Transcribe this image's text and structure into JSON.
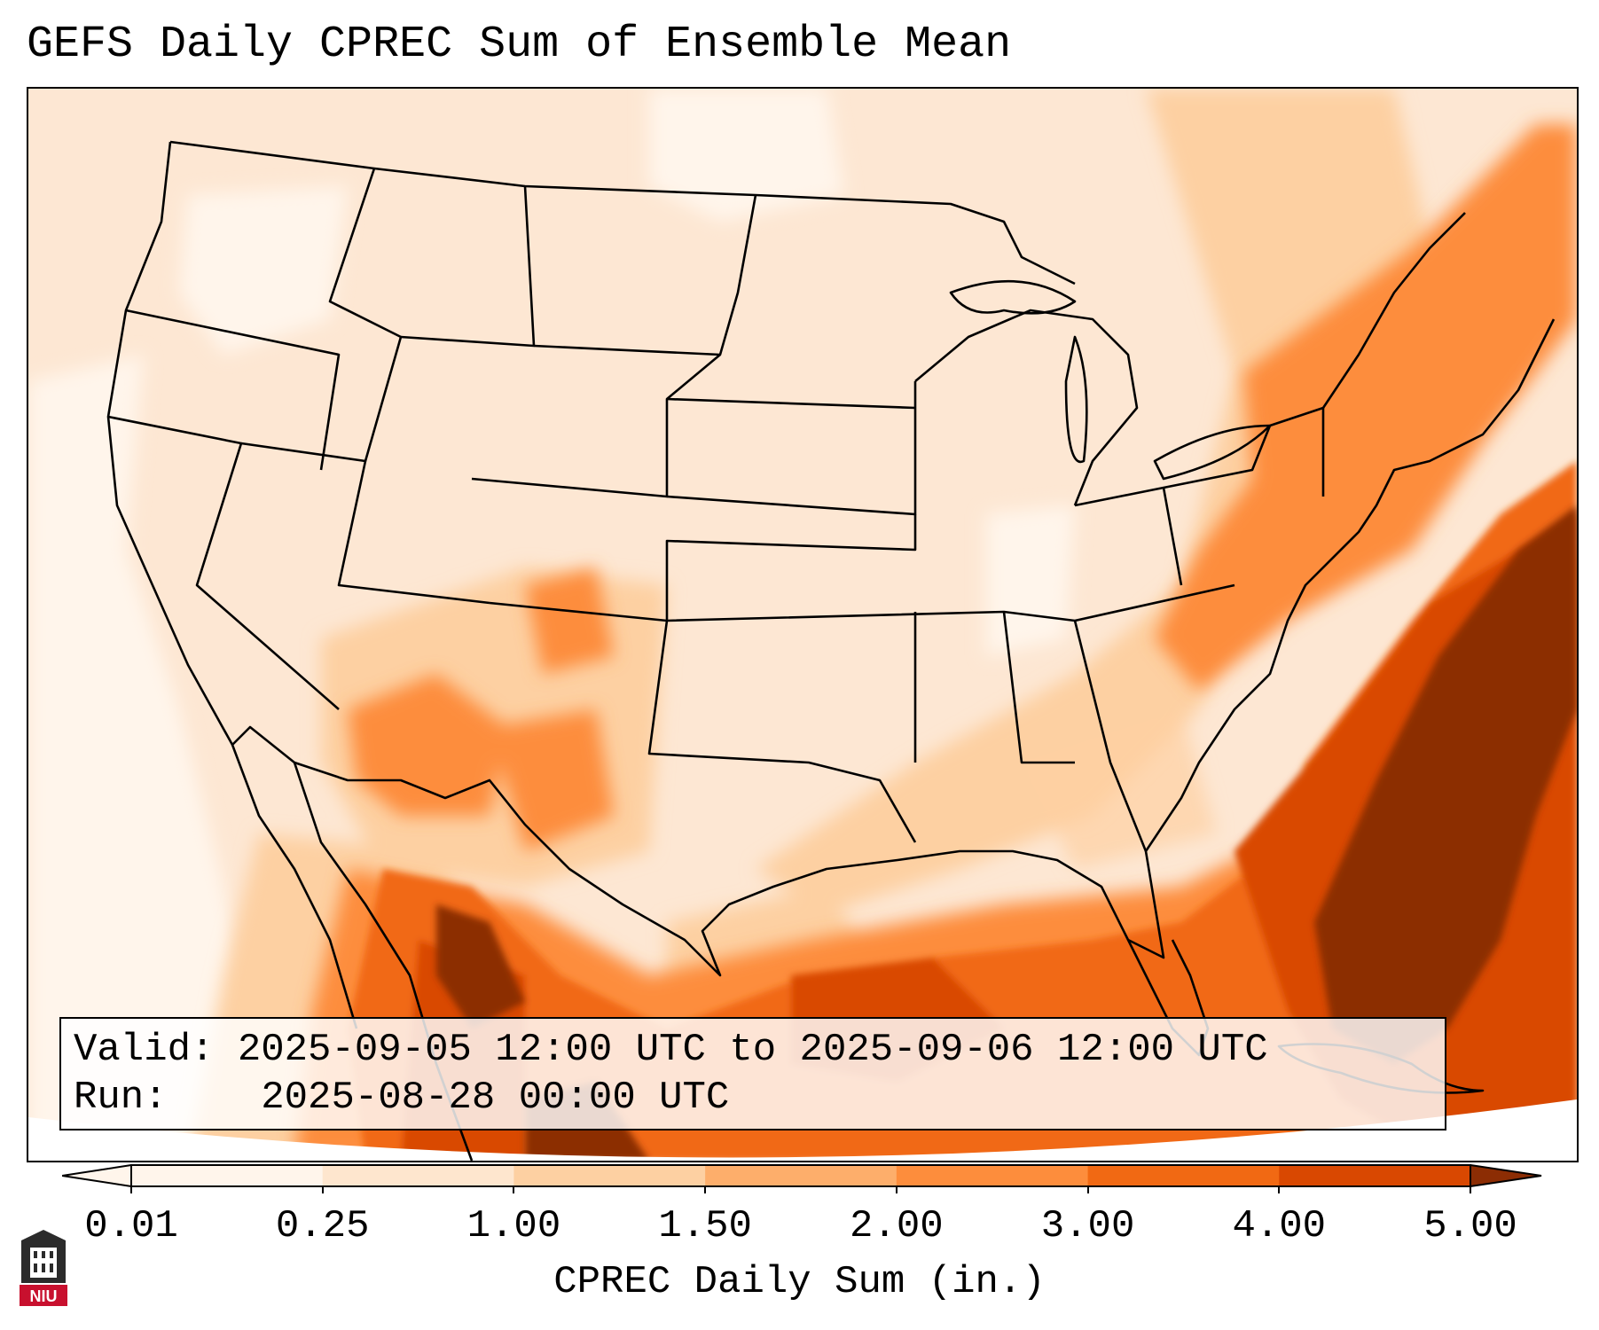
{
  "title": "GEFS Daily CPREC Sum of Ensemble Mean",
  "info": {
    "valid_label": "Valid:",
    "valid_value": "2025-09-05 12:00 UTC to 2025-09-06 12:00 UTC",
    "run_label": "Run:",
    "run_value": "2025-08-28 00:00 UTC"
  },
  "colorbar": {
    "ticks": [
      "0.01",
      "0.25",
      "1.00",
      "1.50",
      "2.00",
      "3.00",
      "4.00",
      "5.00"
    ],
    "colors": [
      "#fff5eb",
      "#fee6ce",
      "#fdd0a2",
      "#fdae6b",
      "#fd8d3c",
      "#f16913",
      "#d94801",
      "#8c2d04"
    ],
    "label": "CPREC Daily Sum (in.)"
  },
  "map": {
    "units": "in.",
    "max_region": "western Atlantic off the Southeast coast",
    "colors": {
      "background": "#fde7d3",
      "light": "#fff5eb",
      "low": "#fdd0a2",
      "mid": "#fd8d3c",
      "high": "#d94801",
      "max": "#8c2d04",
      "border": "#000000"
    }
  },
  "logo": {
    "text": "NIU",
    "color": "#c8102e"
  }
}
